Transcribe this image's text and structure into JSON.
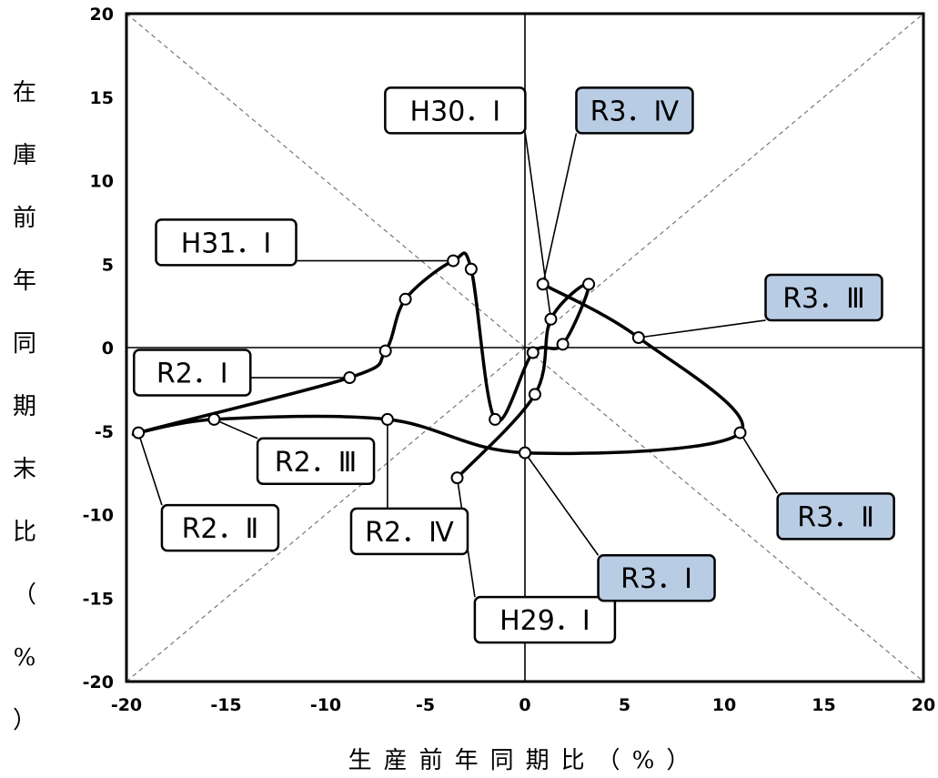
{
  "chart_data": {
    "type": "scatter",
    "xlabel": "生産前年同期比（%）",
    "ylabel": "在庫前年同期末比（%）",
    "xlim": [
      -20,
      20
    ],
    "ylim": [
      -20,
      20
    ],
    "x_ticks": [
      "-20",
      "-15",
      "-10",
      "-5",
      "0",
      "5",
      "10",
      "15",
      "20"
    ],
    "y_ticks": [
      "20",
      "15",
      "10",
      "5",
      "0",
      "-5",
      "-10",
      "-15",
      "-20"
    ],
    "series": [
      {
        "points": [
          {
            "x": -3.4,
            "y": -7.8
          },
          {
            "x": 0.5,
            "y": -2.8
          },
          {
            "x": 1.3,
            "y": 1.7
          },
          {
            "x": 3.2,
            "y": 3.8
          },
          {
            "x": 1.9,
            "y": 0.2
          },
          {
            "x": 0.4,
            "y": -0.3
          },
          {
            "x": -1.5,
            "y": -4.3
          },
          {
            "x": -2.7,
            "y": 4.7
          },
          {
            "x": -3.6,
            "y": 5.2
          },
          {
            "x": -6.0,
            "y": 2.9
          },
          {
            "x": -7.0,
            "y": -0.2
          },
          {
            "x": -8.8,
            "y": -1.8
          },
          {
            "x": -19.4,
            "y": -5.1
          },
          {
            "x": -15.6,
            "y": -4.3
          },
          {
            "x": -6.9,
            "y": -4.3
          },
          {
            "x": 0.0,
            "y": -6.3
          },
          {
            "x": 10.8,
            "y": -5.1
          },
          {
            "x": 5.7,
            "y": 0.6
          },
          {
            "x": 0.9,
            "y": 3.8
          }
        ]
      }
    ],
    "labels": [
      {
        "text": "H29．Ⅰ",
        "x": -3.4,
        "y": -7.8,
        "box_x": 1.0,
        "box_y": -16.3,
        "highlight": false
      },
      {
        "text": "H30．Ⅰ",
        "x": 1.3,
        "y": 1.7,
        "box_x": -3.5,
        "box_y": 14.2,
        "highlight": false
      },
      {
        "text": "H31．Ⅰ",
        "x": -3.6,
        "y": 5.2,
        "box_x": -15.0,
        "box_y": 6.3,
        "highlight": false
      },
      {
        "text": "R2．Ⅰ",
        "x": -8.8,
        "y": -1.8,
        "box_x": -16.7,
        "box_y": -1.5,
        "highlight": false
      },
      {
        "text": "R2．Ⅱ",
        "x": -19.4,
        "y": -5.1,
        "box_x": -15.3,
        "box_y": -10.8,
        "highlight": false
      },
      {
        "text": "R2．Ⅲ",
        "x": -15.6,
        "y": -4.3,
        "box_x": -10.5,
        "box_y": -6.8,
        "highlight": false
      },
      {
        "text": "R2．Ⅳ",
        "x": -6.9,
        "y": -4.3,
        "box_x": -5.8,
        "box_y": -11.0,
        "highlight": false
      },
      {
        "text": "R3．Ⅰ",
        "x": 0.0,
        "y": -6.3,
        "box_x": 6.6,
        "box_y": -13.8,
        "highlight": true
      },
      {
        "text": "R3．Ⅱ",
        "x": 10.8,
        "y": -5.1,
        "box_x": 15.6,
        "box_y": -10.1,
        "highlight": true
      },
      {
        "text": "R3．Ⅲ",
        "x": 5.7,
        "y": 0.6,
        "box_x": 15.0,
        "box_y": 3.0,
        "highlight": true
      },
      {
        "text": "R3．Ⅳ",
        "x": 0.9,
        "y": 3.8,
        "box_x": 5.5,
        "box_y": 14.2,
        "highlight": true
      }
    ],
    "highlight_color": "#b8cce4",
    "grid": false,
    "reference_lines": [
      "y=x dashed",
      "y=-x dashed",
      "x=0",
      "y=0"
    ]
  }
}
